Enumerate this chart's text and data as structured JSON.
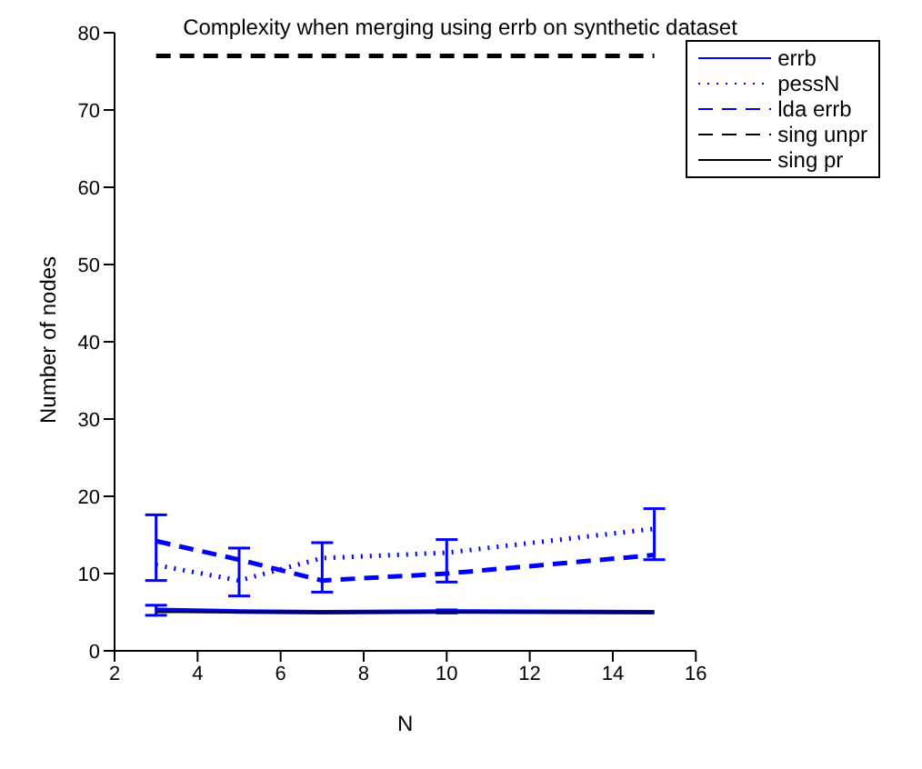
{
  "chart_data": {
    "type": "line",
    "title": "Complexity when merging using errb on synthetic dataset",
    "xlabel": "N",
    "ylabel": "Number of nodes",
    "x": [
      3,
      5,
      7,
      10,
      15
    ],
    "series": [
      {
        "name": "errb",
        "color": "#0000ff",
        "line_style": "solid",
        "values": [
          5.3,
          5.1,
          5.0,
          5.1,
          5.0
        ],
        "errors": [
          [
            4.6,
            5.9
          ],
          null,
          null,
          [
            4.9,
            5.3
          ],
          null
        ]
      },
      {
        "name": "pessN",
        "color": "#0000ff",
        "line_style": "dotted",
        "values": [
          11.1,
          9.1,
          12.0,
          12.7,
          15.8
        ]
      },
      {
        "name": "lda errb",
        "color": "#0000ff",
        "line_style": "dashed",
        "values": [
          14.2,
          11.8,
          9.1,
          10.0,
          12.4
        ],
        "errors": [
          [
            9.1,
            17.6
          ],
          [
            7.1,
            13.3
          ],
          [
            7.6,
            14.0
          ],
          [
            8.9,
            14.4
          ],
          [
            11.8,
            18.4
          ]
        ]
      },
      {
        "name": "sing unpr",
        "color": "#000000",
        "line_style": "dashed",
        "values": [
          77,
          77,
          77,
          77,
          77
        ]
      },
      {
        "name": "sing pr",
        "color": "#000000",
        "line_style": "solid",
        "values": [
          5,
          5,
          5,
          5,
          5
        ]
      }
    ],
    "xlim": [
      2,
      16
    ],
    "xticks": [
      2,
      4,
      6,
      8,
      10,
      12,
      14,
      16
    ],
    "ylim": [
      0,
      80
    ],
    "yticks": [
      0,
      10,
      20,
      30,
      40,
      50,
      60,
      70,
      80
    ],
    "legend": "top right",
    "grid": false,
    "marker": "none"
  }
}
